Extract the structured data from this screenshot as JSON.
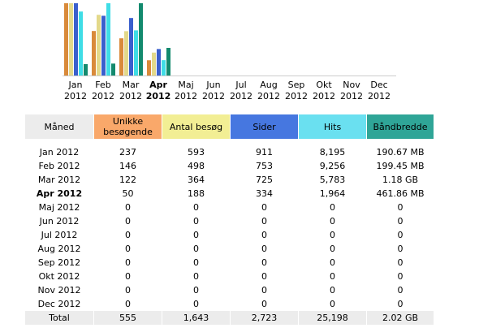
{
  "chart_data": {
    "type": "bar",
    "categories": [
      "Jan 2012",
      "Feb 2012",
      "Mar 2012",
      "Apr 2012",
      "Maj 2012",
      "Jun 2012",
      "Jul 2012",
      "Aug 2012",
      "Sep 2012",
      "Okt 2012",
      "Nov 2012",
      "Dec 2012"
    ],
    "highlight_index": 3,
    "series": [
      {
        "color": "#d98a3a",
        "values": [
          237,
          146,
          122,
          50,
          0,
          0,
          0,
          0,
          0,
          0,
          0,
          0
        ]
      },
      {
        "color": "#e3d98a",
        "values": [
          593,
          498,
          364,
          188,
          0,
          0,
          0,
          0,
          0,
          0,
          0,
          0
        ]
      },
      {
        "color": "#3a5fcd",
        "values": [
          911,
          753,
          725,
          334,
          0,
          0,
          0,
          0,
          0,
          0,
          0,
          0
        ]
      },
      {
        "color": "#3fdde6",
        "values": [
          8195,
          9256,
          5783,
          1964,
          0,
          0,
          0,
          0,
          0,
          0,
          0,
          0
        ]
      },
      {
        "color": "#138a6e",
        "values": [
          190.67,
          199.45,
          1208.32,
          461.86,
          0,
          0,
          0,
          0,
          0,
          0,
          0,
          0
        ]
      }
    ]
  },
  "table": {
    "header": [
      {
        "text": "Måned",
        "color": "#ececec"
      },
      {
        "text": "Unikke besøgende",
        "color": "#f9a86a"
      },
      {
        "text": "Antal besøg",
        "color": "#f2ee94"
      },
      {
        "text": "Sider",
        "color": "#4677e0"
      },
      {
        "text": "Hits",
        "color": "#6ae0f0"
      },
      {
        "text": "Båndbredde",
        "color": "#2fa597"
      }
    ],
    "rows": [
      [
        "237",
        "593",
        "911",
        "8,195",
        "190.67 MB"
      ],
      [
        "146",
        "498",
        "753",
        "9,256",
        "199.45 MB"
      ],
      [
        "122",
        "364",
        "725",
        "5,783",
        "1.18 GB"
      ],
      [
        "50",
        "188",
        "334",
        "1,964",
        "461.86 MB"
      ],
      [
        "0",
        "0",
        "0",
        "0",
        "0"
      ],
      [
        "0",
        "0",
        "0",
        "0",
        "0"
      ],
      [
        "0",
        "0",
        "0",
        "0",
        "0"
      ],
      [
        "0",
        "0",
        "0",
        "0",
        "0"
      ],
      [
        "0",
        "0",
        "0",
        "0",
        "0"
      ],
      [
        "0",
        "0",
        "0",
        "0",
        "0"
      ],
      [
        "0",
        "0",
        "0",
        "0",
        "0"
      ],
      [
        "0",
        "0",
        "0",
        "0",
        "0"
      ]
    ],
    "total": [
      "Total",
      "555",
      "1,643",
      "2,723",
      "25,198",
      "2.02 GB"
    ]
  }
}
